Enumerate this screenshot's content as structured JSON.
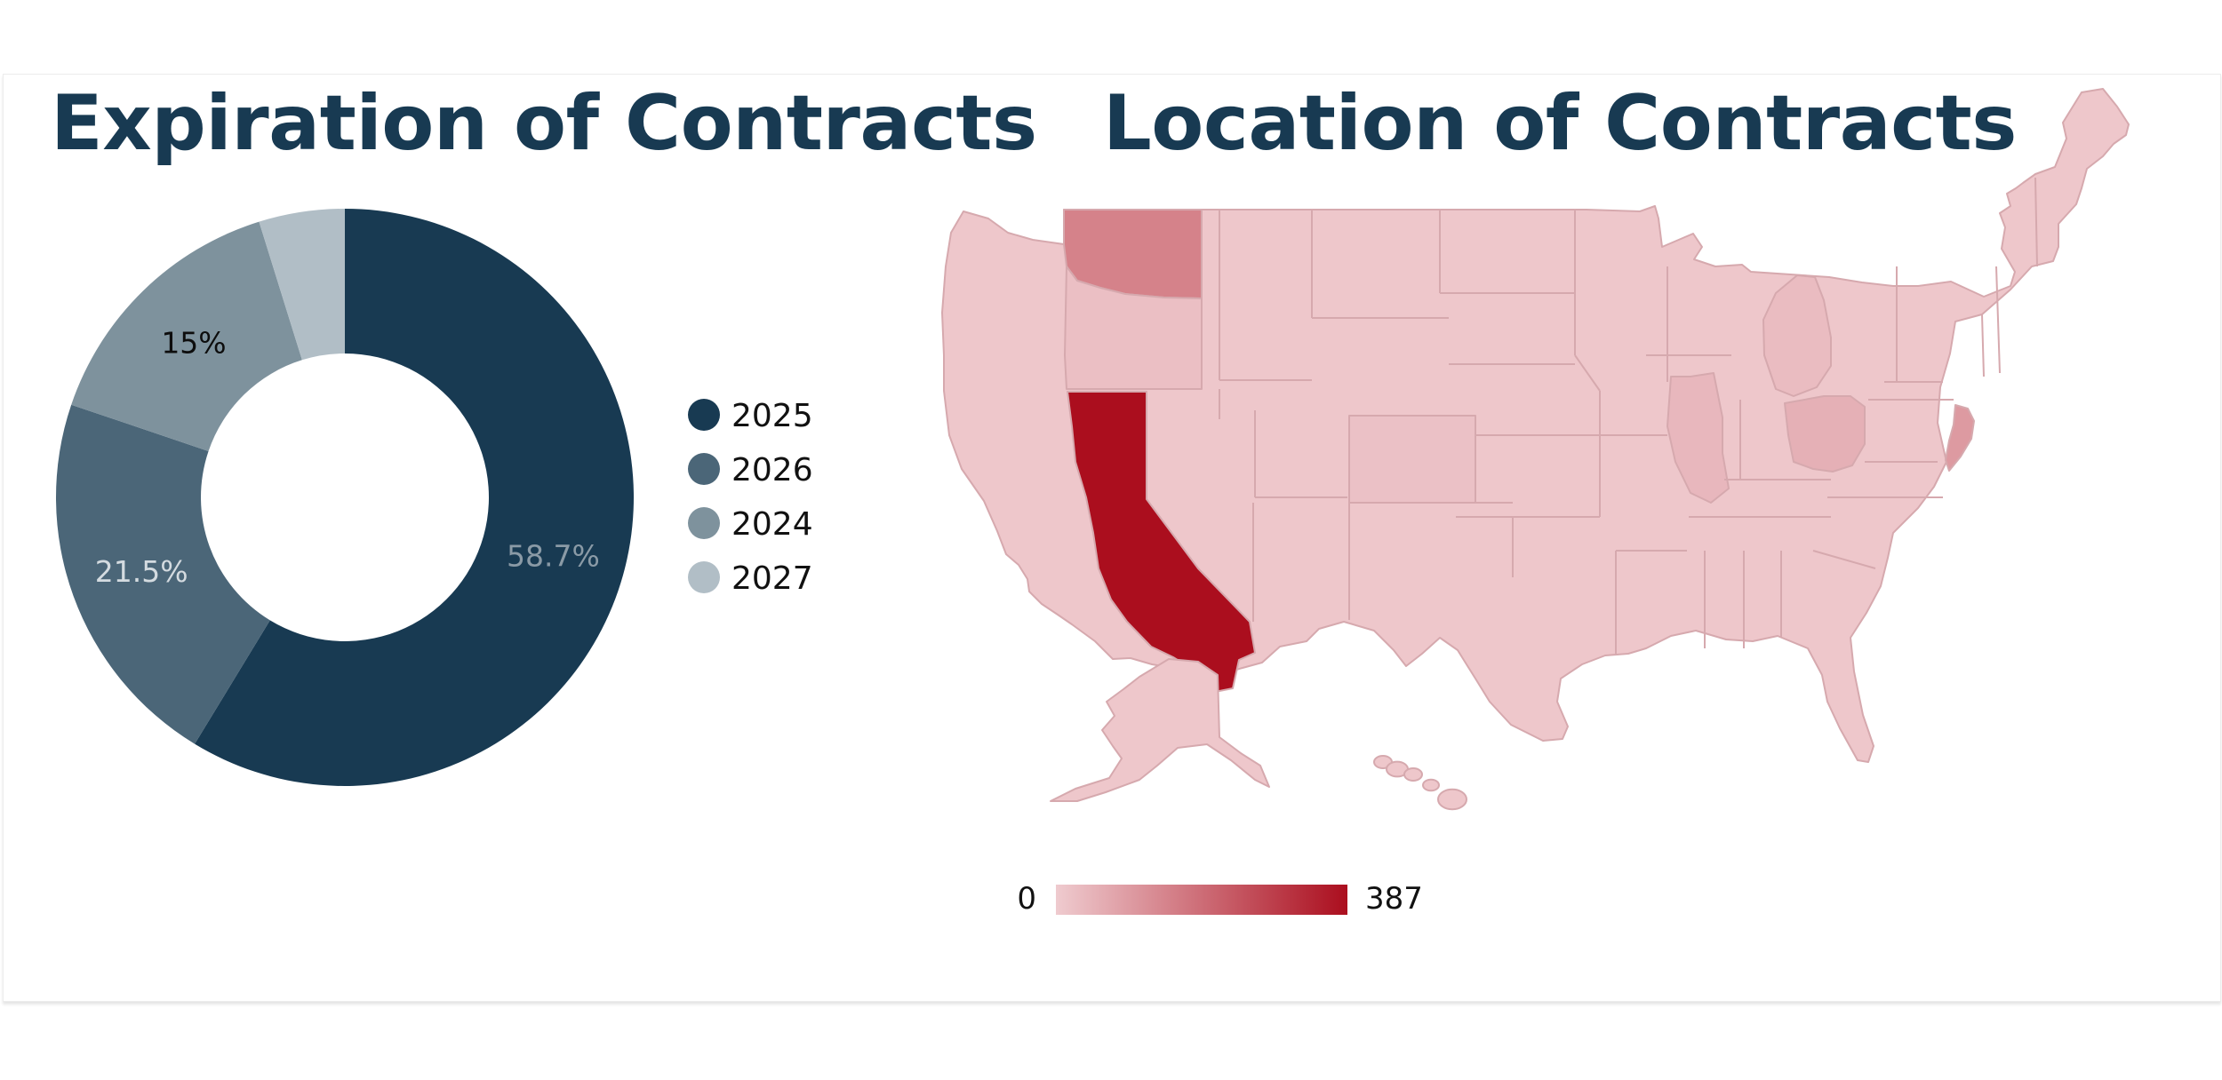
{
  "colors": {
    "title": "#183a52",
    "map_low": "#efcbcf",
    "map_high": "#ab0e1e",
    "map_border": "#d6a9ae"
  },
  "donut": {
    "title": "Expiration of Contracts"
  },
  "map": {
    "title": "Location of Contracts"
  },
  "chart_data": [
    {
      "type": "pie",
      "variant": "donut",
      "title": "Expiration of Contracts",
      "legend_position": "right",
      "slices": [
        {
          "label": "2025",
          "value": 58.7,
          "display": "58.7%",
          "color": "#183a52",
          "label_color": "#8a9aa6"
        },
        {
          "label": "2026",
          "value": 21.5,
          "display": "21.5%",
          "color": "#4b6678",
          "label_color": "#d4dbe0"
        },
        {
          "label": "2024",
          "value": 15.0,
          "display": "15%",
          "color": "#7e929d",
          "label_color": "#0d0d0d"
        },
        {
          "label": "2027",
          "value": 4.8,
          "display": "",
          "color": "#b1bec6",
          "label_color": "#0d0d0d"
        }
      ]
    },
    {
      "type": "heatmap",
      "variant": "choropleth-us-states",
      "title": "Location of Contracts",
      "scale": {
        "min": 0,
        "max": 387,
        "min_label": "0",
        "max_label": "387"
      },
      "regions": [
        {
          "name": "CA",
          "value": 387
        },
        {
          "name": "WA",
          "value": 150
        },
        {
          "name": "NJ",
          "value": 100
        },
        {
          "name": "OH",
          "value": 55
        },
        {
          "name": "IL",
          "value": 40
        },
        {
          "name": "MI",
          "value": 30
        },
        {
          "name": "OR",
          "value": 25
        },
        {
          "name": "CO",
          "value": 20
        },
        {
          "name": "other",
          "value": 8
        }
      ]
    }
  ]
}
